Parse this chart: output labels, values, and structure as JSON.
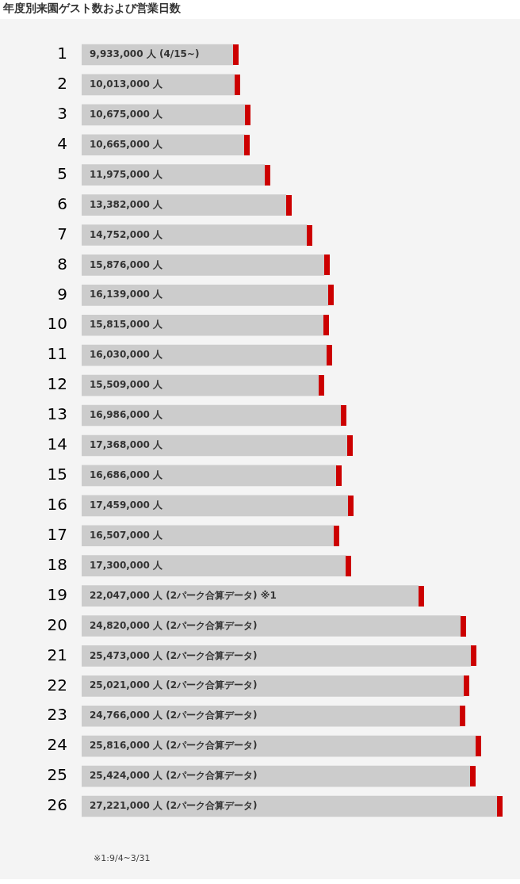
{
  "chart_data": {
    "type": "bar",
    "orientation": "horizontal",
    "title": "年度別来園ゲスト数および営業日数",
    "categories": [
      "1",
      "2",
      "3",
      "4",
      "5",
      "6",
      "7",
      "8",
      "9",
      "10",
      "11",
      "12",
      "13",
      "14",
      "15",
      "16",
      "17",
      "18",
      "19",
      "20",
      "21",
      "22",
      "23",
      "24",
      "25",
      "26"
    ],
    "series": [
      {
        "color": "#cccccc",
        "values": [
          9933000,
          10013000,
          10675000,
          10665000,
          11975000,
          13382000,
          14752000,
          15876000,
          16139000,
          15815000,
          16030000,
          15509000,
          16986000,
          17368000,
          16686000,
          17459000,
          16507000,
          17300000,
          22047000,
          24820000,
          25473000,
          25021000,
          24766000,
          25816000,
          25424000,
          27221000
        ],
        "value_labels": [
          "9,933,000 人 (4/15~)",
          "10,013,000 人",
          "10,675,000 人",
          "10,665,000 人",
          "11,975,000 人",
          "13,382,000 人",
          "14,752,000 人",
          "15,876,000 人",
          "16,139,000 人",
          "15,815,000 人",
          "16,030,000 人",
          "15,509,000 人",
          "16,986,000 人",
          "17,368,000 人",
          "16,686,000 人",
          "17,459,000 人",
          "16,507,000 人",
          "17,300,000 人",
          "22,047,000 人 (2パーク合算データ) ※1",
          "24,820,000 人 (2パーク合算データ)",
          "25,473,000 人 (2パーク合算データ)",
          "25,021,000 人 (2パーク合算データ)",
          "24,766,000 人 (2パーク合算データ)",
          "25,816,000 人 (2パーク合算データ)",
          "25,424,000 人 (2パーク合算データ)",
          "27,221,000 人 (2パーク合算データ)"
        ]
      }
    ],
    "annotations": [
      "※1:9/4~3/31"
    ],
    "legend": false
  }
}
